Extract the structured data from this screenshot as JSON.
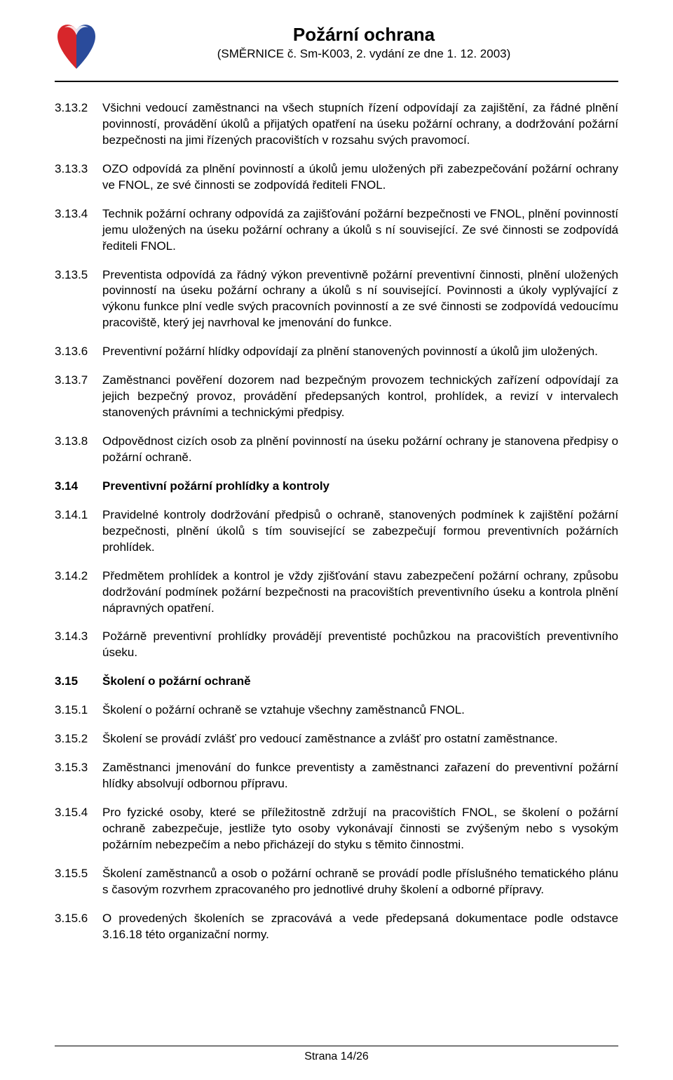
{
  "colors": {
    "background": "#ffffff",
    "text": "#000000",
    "rule": "#000000",
    "logo_red": "#d7262b",
    "logo_blue": "#2a4b9b"
  },
  "typography": {
    "base_fontsize_pt": 13,
    "title_fontsize_pt": 20,
    "subtitle_fontsize_pt": 13,
    "line_height": 1.35
  },
  "header": {
    "title": "Požární ochrana",
    "subtitle": "(SMĚRNICE č. Sm-K003, 2. vydání ze dne 1. 12. 2003)"
  },
  "footer": {
    "page_label": "Strana 14/26"
  },
  "items": [
    {
      "num": "3.13.2",
      "text": "Všichni vedoucí zaměstnanci na všech stupních řízení odpovídají za zajištění, za řádné plnění povinností, provádění úkolů a přijatých opatření na úseku požární ochrany, a dodržování požární bezpečnosti na jimi řízených pracovištích v rozsahu svých pravomocí."
    },
    {
      "num": "3.13.3",
      "text": "OZO odpovídá za plnění povinností a úkolů jemu uložených při zabezpečování požární ochrany ve FNOL, ze své činnosti se zodpovídá řediteli FNOL."
    },
    {
      "num": "3.13.4",
      "text": "Technik požární ochrany odpovídá za zajišťování požární bezpečnosti ve FNOL, plnění povinností jemu uložených na úseku požární ochrany a úkolů s ní související. Ze své činnosti se zodpovídá řediteli FNOL."
    },
    {
      "num": "3.13.5",
      "text": "Preventista odpovídá za řádný výkon preventivně požární preventivní činnosti, plnění uložených povinností na úseku požární ochrany a úkolů s ní související. Povinnosti a úkoly vyplývající z výkonu funkce plní vedle svých pracovních povinností a ze své činnosti se zodpovídá vedoucímu pracoviště, který jej navrhoval ke jmenování do funkce."
    },
    {
      "num": "3.13.6",
      "text": "Preventivní požární hlídky odpovídají za plnění stanovených povinností a úkolů jim uložených."
    },
    {
      "num": "3.13.7",
      "text": "Zaměstnanci pověření dozorem nad bezpečným provozem technických zařízení odpovídají za jejich bezpečný provoz, provádění předepsaných kontrol, prohlídek, a revizí v intervalech stanovených právními a technickými předpisy."
    },
    {
      "num": "3.13.8",
      "text": "Odpovědnost cizích osob za plnění povinností na úseku požární ochrany je stanovena předpisy o požární ochraně."
    },
    {
      "num": "3.14",
      "text": "Preventivní požární prohlídky a kontroly",
      "section": true
    },
    {
      "num": "3.14.1",
      "text": "Pravidelné kontroly dodržování předpisů o ochraně, stanovených podmínek k zajištění požární bezpečnosti, plnění úkolů s tím související se zabezpečují formou preventivních požárních prohlídek."
    },
    {
      "num": "3.14.2",
      "text": "Předmětem prohlídek a kontrol je vždy zjišťování stavu zabezpečení požární ochrany, způsobu dodržování podmínek požární bezpečnosti na pracovištích preventivního úseku a kontrola plnění nápravných opatření."
    },
    {
      "num": "3.14.3",
      "text": "Požárně preventivní prohlídky provádějí preventisté pochůzkou na pracovištích preventivního úseku."
    },
    {
      "num": "3.15",
      "text": "Školení o požární ochraně",
      "section": true
    },
    {
      "num": "3.15.1",
      "text": "Školení o požární ochraně se vztahuje všechny zaměstnanců FNOL."
    },
    {
      "num": "3.15.2",
      "text": "Školení se provádí zvlášť pro vedoucí zaměstnance a zvlášť pro ostatní zaměstnance."
    },
    {
      "num": "3.15.3",
      "text": "Zaměstnanci jmenování do funkce preventisty a zaměstnanci zařazení do preventivní požární hlídky absolvují odbornou přípravu."
    },
    {
      "num": "3.15.4",
      "text": "Pro fyzické osoby, které se příležitostně zdržují na pracovištích FNOL, se školení o požární ochraně zabezpečuje, jestliže tyto osoby vykonávají činnosti se zvýšeným nebo s vysokým požárním nebezpečím a nebo přicházejí do styku s těmito činnostmi."
    },
    {
      "num": "3.15.5",
      "text": "Školení zaměstnanců a osob o požární ochraně se provádí podle příslušného tematického plánu s časovým rozvrhem zpracovaného pro jednotlivé druhy školení a odborné přípravy."
    },
    {
      "num": "3.15.6",
      "text": "O provedených školeních se zpracovává a vede předepsaná dokumentace podle odstavce 3.16.18 této organizační normy."
    }
  ]
}
